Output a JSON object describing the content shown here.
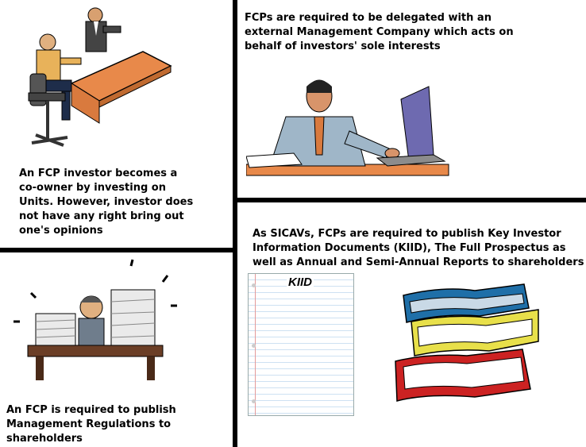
{
  "panels": {
    "top_left": {
      "caption": "An FCP investor becomes a co-owner by investing on Units. However, investor does not have any right bring out one's opinions"
    },
    "top_right": {
      "caption": "FCPs are required to be delegated with an external Management Company which acts on behalf of investors' sole interests"
    },
    "bottom_left": {
      "caption": "An FCP is required to publish Management Regulations to shareholders"
    },
    "bottom_right": {
      "caption": "As SICAVs, FCPs are required to publish Key Investor Information Documents (KIID), The Full Prospectus as well as Annual and Semi-Annual Reports to shareholders",
      "kiid_label": "KIID"
    }
  },
  "colors": {
    "divider": "#000000",
    "desk_orange": "#e8894a",
    "book_blue": "#1f6fa8",
    "book_yellow": "#e8e04a",
    "book_red": "#cc2222"
  }
}
